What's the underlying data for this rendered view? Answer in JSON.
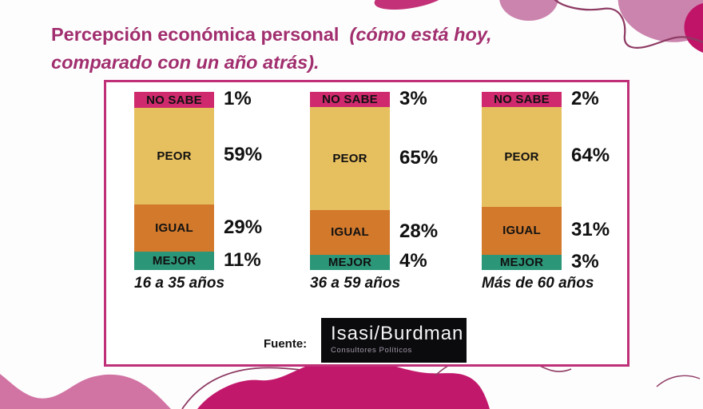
{
  "header": {
    "title_bold": "Percepción económica personal",
    "title_italic_line1": "(cómo está hoy,",
    "title_italic_line2": "comparado con un año atrás).",
    "title_color": "#a12e6e"
  },
  "chart_data": {
    "type": "bar",
    "stacked": true,
    "orientation": "vertical",
    "unit": "%",
    "title": "Percepción económica personal (cómo está hoy, comparado con un año atrás).",
    "segments_order": [
      "NO SABE",
      "PEOR",
      "IGUAL",
      "MEJOR"
    ],
    "segment_colors": {
      "NO SABE": "#ce2a6d",
      "PEOR": "#e6bf5f",
      "IGUAL": "#d2792c",
      "MEJOR": "#2c9678"
    },
    "groups": [
      {
        "label": "16 a 35 años",
        "values": {
          "NO SABE": 1,
          "PEOR": 59,
          "IGUAL": 29,
          "MEJOR": 11
        }
      },
      {
        "label": "36 a 59 años",
        "values": {
          "NO SABE": 3,
          "PEOR": 65,
          "IGUAL": 28,
          "MEJOR": 4
        }
      },
      {
        "label": "Más de 60 años",
        "values": {
          "NO SABE": 2,
          "PEOR": 64,
          "IGUAL": 31,
          "MEJOR": 3
        }
      }
    ]
  },
  "footer": {
    "fuente_label": "Fuente:",
    "logo_title": "Isasi/Burdman",
    "logo_subtitle": "Consultores Políticos"
  },
  "colors": {
    "panel_border": "#bf3078",
    "deco_dark_pink": "#c33278",
    "deco_mauve": "#cb84ad",
    "deco_magenta": "#c2186b",
    "deco_light_wave": "#d173a3",
    "deco_edge_dark": "#c01468",
    "deco_line": "#8e3a63"
  }
}
